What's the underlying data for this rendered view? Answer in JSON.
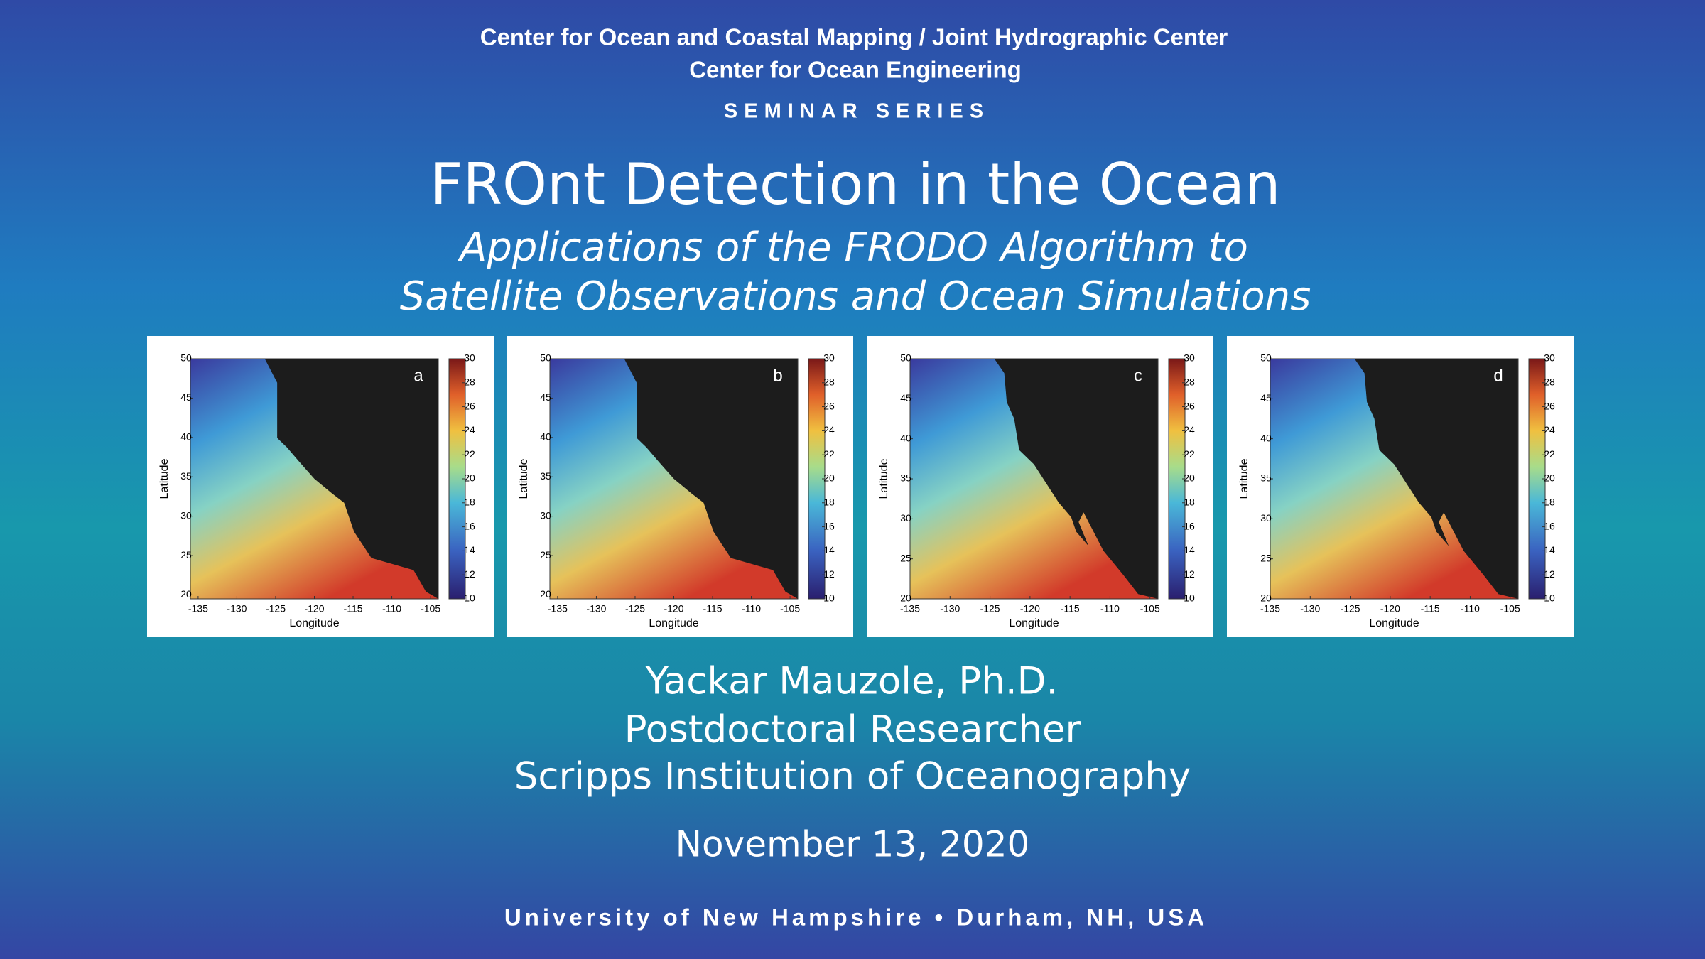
{
  "header": {
    "line1": "Center for Ocean and Coastal Mapping / Joint Hydrographic Center",
    "line2": "Center for Ocean Engineering",
    "series": "SEMINAR SERIES"
  },
  "title": "FROnt Detection in the Ocean",
  "subtitle": [
    "Applications of the FRODO Algorithm to",
    "Satellite Observations and Ocean Simulations"
  ],
  "panels": [
    {
      "label": "a",
      "xlabel": "Longitude",
      "ylabel": "Latitude",
      "xlim": [
        -136,
        -104
      ],
      "ylim": [
        19.5,
        50
      ],
      "clim": [
        10,
        30
      ],
      "xticks": [
        -135,
        -130,
        -125,
        -120,
        -115,
        -110,
        -105
      ],
      "yticks": [
        20,
        25,
        30,
        35,
        40,
        45,
        50
      ],
      "colorbar_ticks": [
        10,
        12,
        14,
        16,
        18,
        20,
        22,
        24,
        26,
        28,
        30
      ]
    },
    {
      "label": "b",
      "xlabel": "Longitude",
      "ylabel": "Latitude",
      "xlim": [
        -136,
        -104
      ],
      "ylim": [
        19.5,
        50
      ],
      "clim": [
        10,
        30
      ],
      "xticks": [
        -135,
        -130,
        -125,
        -120,
        -115,
        -110,
        -105
      ],
      "yticks": [
        20,
        25,
        30,
        35,
        40,
        45,
        50
      ],
      "colorbar_ticks": [
        10,
        12,
        14,
        16,
        18,
        20,
        22,
        24,
        26,
        28,
        30
      ]
    },
    {
      "label": "c",
      "xlabel": "Longitude",
      "ylabel": "Latitude",
      "xlim": [
        -135,
        -104
      ],
      "ylim": [
        20,
        50
      ],
      "clim": [
        10,
        30
      ],
      "xticks": [
        -135,
        -130,
        -125,
        -120,
        -115,
        -110,
        -105
      ],
      "yticks": [
        20,
        25,
        30,
        35,
        40,
        45,
        50
      ],
      "colorbar_ticks": [
        10,
        12,
        14,
        16,
        18,
        20,
        22,
        24,
        26,
        28,
        30
      ]
    },
    {
      "label": "d",
      "xlabel": "Longitude",
      "ylabel": "Latitude",
      "xlim": [
        -135,
        -104
      ],
      "ylim": [
        20,
        50
      ],
      "clim": [
        10,
        30
      ],
      "xticks": [
        -135,
        -130,
        -125,
        -120,
        -115,
        -110,
        -105
      ],
      "yticks": [
        20,
        25,
        30,
        35,
        40,
        45,
        50
      ],
      "colorbar_ticks": [
        10,
        12,
        14,
        16,
        18,
        20,
        22,
        24,
        26,
        28,
        30
      ]
    }
  ],
  "speaker": [
    "Yackar Mauzole, Ph.D.",
    "Postdoctoral Researcher",
    "Scripps Institution of Oceanography"
  ],
  "date": "November 13, 2020",
  "footer": "University of New Hampshire • Durham, NH, USA"
}
